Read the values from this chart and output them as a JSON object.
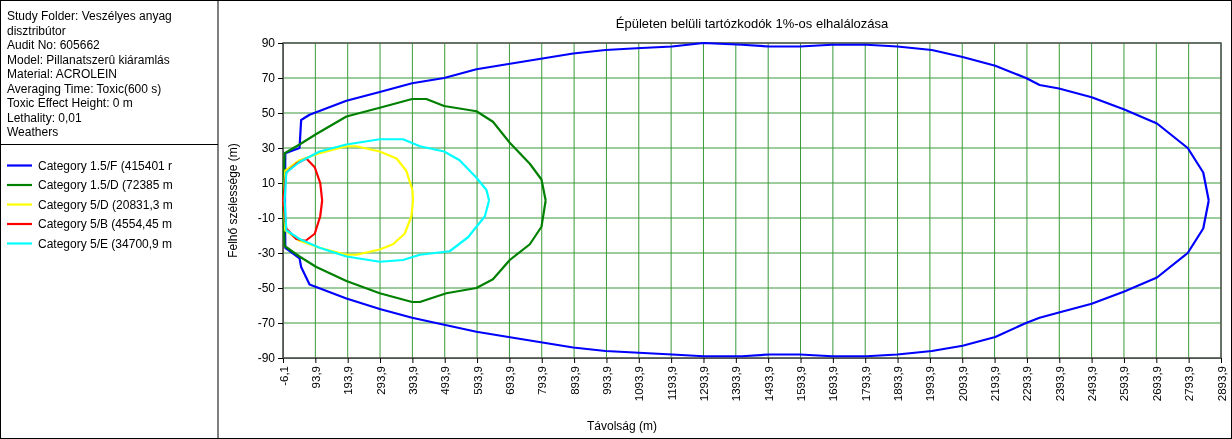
{
  "chart_data": {
    "type": "line",
    "title": "Épületen belüli tartózkodók 1%-os elhalálozása",
    "xlabel": "Távolság (m)",
    "ylabel": "Felhő szélessége (m)",
    "annotations": [
      "Study Folder: Veszélyes anyag disztribútor",
      "Audit No: 605662",
      "Model: Pillanatszerû kiáramlás",
      "Material: ACROLEIN",
      "Averaging Time: Toxic(600 s)",
      "Toxic Effect Height: 0 m",
      "Lethality: 0,01",
      "Weathers"
    ],
    "xlim": [
      -6.1,
      2893.9
    ],
    "ylim": [
      -90,
      90
    ],
    "xticks": [
      {
        "value": -6.1,
        "label": "-6,1"
      },
      {
        "value": 93.9,
        "label": "93,9"
      },
      {
        "value": 193.9,
        "label": "193,9"
      },
      {
        "value": 293.9,
        "label": "293,9"
      },
      {
        "value": 393.9,
        "label": "393,9"
      },
      {
        "value": 493.9,
        "label": "493,9"
      },
      {
        "value": 593.9,
        "label": "593,9"
      },
      {
        "value": 693.9,
        "label": "693,9"
      },
      {
        "value": 793.9,
        "label": "793,9"
      },
      {
        "value": 893.9,
        "label": "893,9"
      },
      {
        "value": 993.9,
        "label": "993,9"
      },
      {
        "value": 1093.9,
        "label": "1093,9"
      },
      {
        "value": 1193.9,
        "label": "1193,9"
      },
      {
        "value": 1293.9,
        "label": "1293,9"
      },
      {
        "value": 1393.9,
        "label": "1393,9"
      },
      {
        "value": 1493.9,
        "label": "1493,9"
      },
      {
        "value": 1593.9,
        "label": "1593,9"
      },
      {
        "value": 1693.9,
        "label": "1693,9"
      },
      {
        "value": 1793.9,
        "label": "1793,9"
      },
      {
        "value": 1893.9,
        "label": "1893,9"
      },
      {
        "value": 1993.9,
        "label": "1993,9"
      },
      {
        "value": 2093.9,
        "label": "2093,9"
      },
      {
        "value": 2193.9,
        "label": "2193,9"
      },
      {
        "value": 2293.9,
        "label": "2293,9"
      },
      {
        "value": 2393.9,
        "label": "2393,9"
      },
      {
        "value": 2493.9,
        "label": "2493,9"
      },
      {
        "value": 2593.9,
        "label": "2593,9"
      },
      {
        "value": 2693.9,
        "label": "2693,9"
      },
      {
        "value": 2793.9,
        "label": "2793,9"
      },
      {
        "value": 2893.9,
        "label": "2893,9"
      }
    ],
    "yticks": [
      -90,
      -70,
      -50,
      -30,
      -10,
      10,
      30,
      50,
      70,
      90
    ],
    "grid": true,
    "legend": "left",
    "marker": "none",
    "line_style": "solid",
    "series": [
      {
        "name": "Category 1.5/F (415401 r",
        "color": "#0000ff",
        "x": [
          0,
          1,
          45,
          50,
          76,
          190,
          293,
          393,
          492,
          592,
          691,
          791,
          891,
          991,
          1087,
          1197,
          1294,
          1413,
          1497,
          1592,
          1691,
          1798,
          1893,
          2000,
          2095,
          2196,
          2291,
          2333,
          2393,
          2494,
          2595,
          2696,
          2791,
          2839,
          2856,
          null,
          0,
          1,
          45,
          50,
          76,
          190,
          293,
          393,
          492,
          592,
          691,
          791,
          891,
          991,
          1094,
          1197,
          1294,
          1413,
          1497,
          1592,
          1691,
          1798,
          1893,
          2000,
          2095,
          2196,
          2291,
          2333,
          2393,
          2494,
          2595,
          2696,
          2791,
          2839,
          2856
        ],
        "values": [
          0,
          27,
          30,
          46,
          49,
          57,
          62,
          67,
          70,
          75,
          78,
          81,
          84,
          86,
          87,
          88,
          90,
          89,
          88,
          88,
          89,
          89,
          88,
          86,
          82,
          77,
          70,
          66,
          64,
          59,
          52,
          44,
          30,
          16,
          0,
          null,
          0,
          -27,
          -33,
          -38,
          -48,
          -56,
          -62,
          -67,
          -71,
          -75,
          -78,
          -81,
          -84,
          -86,
          -87,
          -88,
          -89,
          -89,
          -88,
          -88,
          -89,
          -89,
          -88,
          -86,
          -83,
          -78,
          -70,
          -67,
          -64,
          -59,
          -52,
          -44,
          -30,
          -16,
          0
        ]
      },
      {
        "name": "Category 1.5/D (72385 m",
        "color": "#008000",
        "x": [
          -6,
          -1,
          45,
          97,
          190,
          293,
          393,
          437,
          492,
          592,
          643,
          695,
          757,
          793,
          806,
          null,
          -6,
          -1,
          45,
          97,
          190,
          293,
          393,
          417,
          499,
          592,
          643,
          695,
          757,
          793,
          806
        ],
        "values": [
          0,
          27,
          32,
          38,
          48,
          53,
          58,
          58,
          54,
          51,
          45,
          33,
          21,
          12,
          0,
          null,
          0,
          -26,
          -32,
          -38,
          -46,
          -53,
          -58,
          -58,
          -53,
          -50,
          -45,
          -34,
          -25,
          -15,
          0
        ]
      },
      {
        "name": "Category 5/D (20831,3 m",
        "color": "#ffff00",
        "x": [
          -4,
          1,
          45,
          107,
          190,
          221,
          293,
          345,
          375,
          394,
          396,
          null,
          -4,
          1,
          45,
          107,
          190,
          221,
          293,
          334,
          370,
          391,
          396
        ],
        "values": [
          0,
          17,
          23,
          27,
          31,
          31,
          28,
          24,
          17,
          6,
          0,
          null,
          0,
          -17,
          -23,
          -27,
          -31,
          -31,
          -28,
          -25,
          -19,
          -9,
          0
        ]
      },
      {
        "name": "Category 5/B (4554,45 m",
        "color": "#ff0000",
        "x": [
          -6,
          4,
          35,
          66,
          92,
          109,
          115,
          null,
          -6,
          4,
          35,
          64,
          92,
          109,
          115
        ],
        "values": [
          0,
          16,
          21,
          24,
          19,
          10,
          0,
          null,
          0,
          -16,
          -22,
          -23,
          -19,
          -9,
          0
        ]
      },
      {
        "name": "Category 5/E (34700,9 m",
        "color": "#00ffff",
        "x": [
          -1,
          4,
          45,
          107,
          190,
          293,
          365,
          417,
          492,
          540,
          592,
          623,
          631,
          null,
          -1,
          4,
          45,
          107,
          190,
          293,
          365,
          417,
          509,
          566,
          618,
          631
        ],
        "values": [
          0,
          16,
          22,
          28,
          32,
          35,
          35,
          31,
          28,
          23,
          13,
          6,
          0,
          null,
          0,
          -17,
          -22,
          -27,
          -32,
          -35,
          -34,
          -31,
          -29,
          -21,
          -9,
          0
        ]
      }
    ]
  }
}
